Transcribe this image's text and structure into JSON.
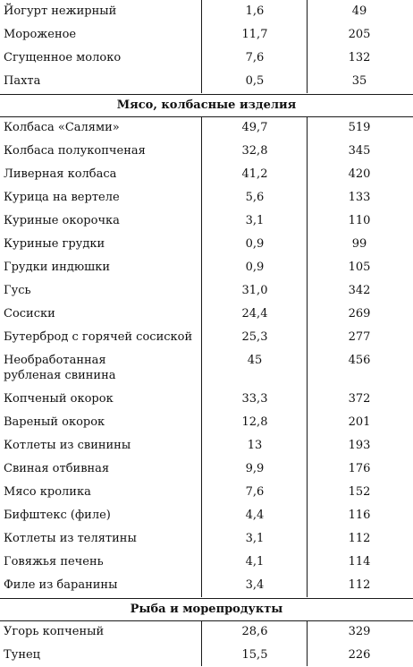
{
  "sections": [
    {
      "title": "",
      "rows": [
        {
          "name": "Йогурт нежирный",
          "fat": "1,6",
          "kcal": "49"
        },
        {
          "name": "Мороженое",
          "fat": "11,7",
          "kcal": "205"
        },
        {
          "name": "Сгущенное молоко",
          "fat": "7,6",
          "kcal": "132"
        },
        {
          "name": "Пахта",
          "fat": "0,5",
          "kcal": "35"
        }
      ]
    },
    {
      "title": "Мясо, колбасные изделия",
      "rows": [
        {
          "name": "Колбаса «Салями»",
          "fat": "49,7",
          "kcal": "519"
        },
        {
          "name": "Колбаса полукопченая",
          "fat": "32,8",
          "kcal": "345"
        },
        {
          "name": "Ливерная колбаса",
          "fat": "41,2",
          "kcal": "420"
        },
        {
          "name": "Курица на вертеле",
          "fat": "5,6",
          "kcal": "133"
        },
        {
          "name": "Куриные окорочка",
          "fat": "3,1",
          "kcal": "110"
        },
        {
          "name": "Куриные грудки",
          "fat": "0,9",
          "kcal": "99"
        },
        {
          "name": "Грудки индюшки",
          "fat": "0,9",
          "kcal": "105"
        },
        {
          "name": "Гусь",
          "fat": "31,0",
          "kcal": "342"
        },
        {
          "name": "Сосиски",
          "fat": "24,4",
          "kcal": "269"
        },
        {
          "name": "Бутерброд с горячей сосиской",
          "fat": "25,3",
          "kcal": "277"
        },
        {
          "name": "Необработанная рубленая свинина",
          "fat": "45",
          "kcal": "456"
        },
        {
          "name": "Копченый окорок",
          "fat": "33,3",
          "kcal": "372"
        },
        {
          "name": "Вареный окорок",
          "fat": "12,8",
          "kcal": "201"
        },
        {
          "name": "Котлеты из свинины",
          "fat": "13",
          "kcal": "193"
        },
        {
          "name": "Свиная отбивная",
          "fat": "9,9",
          "kcal": "176"
        },
        {
          "name": "Мясо кролика",
          "fat": "7,6",
          "kcal": "152"
        },
        {
          "name": "Бифштекс (филе)",
          "fat": "4,4",
          "kcal": "116"
        },
        {
          "name": "Котлеты из телятины",
          "fat": "3,1",
          "kcal": "112"
        },
        {
          "name": "Говяжья печень",
          "fat": "4,1",
          "kcal": "114"
        },
        {
          "name": "Филе из баранины",
          "fat": "3,4",
          "kcal": "112"
        }
      ]
    },
    {
      "title": "Рыба и морепродукты",
      "rows": [
        {
          "name": "Угорь копченый",
          "fat": "28,6",
          "kcal": "329"
        },
        {
          "name": "Тунец",
          "fat": "15,5",
          "kcal": "226"
        }
      ]
    }
  ]
}
